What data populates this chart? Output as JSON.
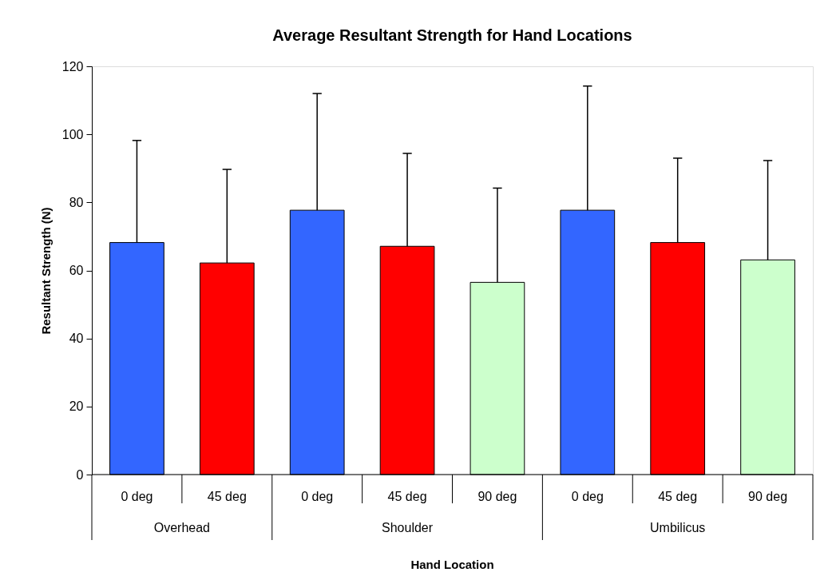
{
  "chart_data": {
    "type": "bar",
    "title": "Average Resultant Strength for Hand Locations",
    "xlabel": "Hand Location",
    "ylabel": "Resultant Strength (N)",
    "categories": [
      "0 deg",
      "45 deg",
      "0 deg",
      "45 deg",
      "90 deg",
      "0 deg",
      "45 deg",
      "90 deg"
    ],
    "values": [
      68.2,
      62.2,
      77.7,
      67.1,
      56.5,
      77.7,
      68.2,
      63.1
    ],
    "colors": [
      "#3366ff",
      "#ff0000",
      "#3366ff",
      "#ff0000",
      "#ccffcc",
      "#3366ff",
      "#ff0000",
      "#ccffcc"
    ],
    "errors": [
      [
        68.2,
        98.2
      ],
      [
        62.2,
        89.7
      ],
      [
        77.7,
        112.0
      ],
      [
        67.1,
        94.4
      ],
      [
        56.5,
        84.2
      ],
      [
        77.7,
        114.2
      ],
      [
        68.2,
        93.0
      ],
      [
        63.1,
        92.3
      ]
    ],
    "annotations": [
      "Overhead",
      "Shoulder",
      "Umbilicus"
    ],
    "ylim": [
      0,
      120
    ],
    "yticks": [
      0,
      20,
      40,
      60,
      80,
      100,
      120
    ],
    "grid": false
  }
}
